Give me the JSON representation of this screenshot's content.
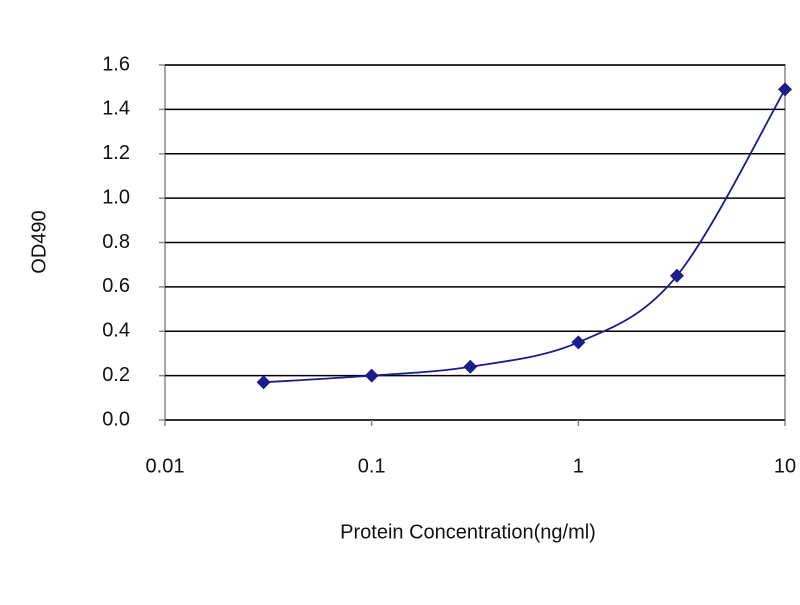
{
  "chart_data": {
    "type": "line",
    "x_label": "Protein Concentration(ng/ml)",
    "y_label": "OD490",
    "x": [
      0.03,
      0.1,
      0.3,
      1,
      3,
      10
    ],
    "series": [
      {
        "color": "#1c1c8a",
        "values": [
          0.17,
          0.2,
          0.24,
          0.35,
          0.65,
          1.49
        ]
      }
    ],
    "xlim": [
      0.01,
      10
    ],
    "xscale": "log",
    "xticks": [
      0.01,
      0.1,
      1,
      10
    ],
    "ylim": [
      0,
      1.6
    ],
    "yticks": [
      {
        "value": 0,
        "label": "0.0"
      },
      0.2,
      0.4,
      0.6,
      0.8,
      {
        "value": 1,
        "label": "1.0"
      },
      1.2,
      1.4,
      1.6
    ],
    "grid": true
  }
}
